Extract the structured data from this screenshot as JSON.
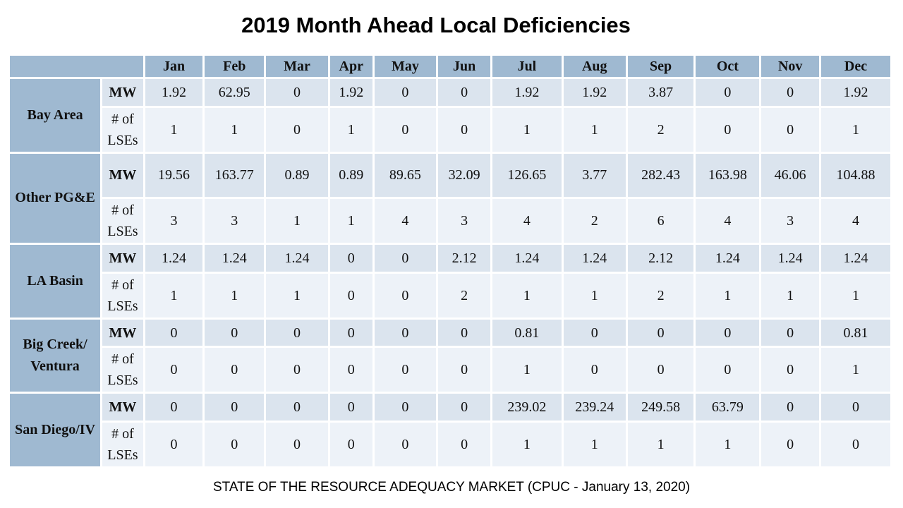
{
  "title": "2019 Month Ahead Local Deficiencies",
  "footer": "STATE OF THE RESOURCE ADEQUACY MARKET (CPUC - January 13, 2020)",
  "months": [
    "Jan",
    "Feb",
    "Mar",
    "Apr",
    "May",
    "Jun",
    "Jul",
    "Aug",
    "Sep",
    "Oct",
    "Nov",
    "Dec"
  ],
  "metric_labels": {
    "mw": "MW",
    "lses": "# of LSEs"
  },
  "regions": [
    {
      "name": "Bay Area",
      "mw": [
        "1.92",
        "62.95",
        "0",
        "1.92",
        "0",
        "0",
        "1.92",
        "1.92",
        "3.87",
        "0",
        "0",
        "1.92"
      ],
      "lses": [
        "1",
        "1",
        "0",
        "1",
        "0",
        "0",
        "1",
        "1",
        "2",
        "0",
        "0",
        "1"
      ]
    },
    {
      "name": "Other PG&E",
      "mw": [
        "19.56",
        "163.77",
        "0.89",
        "0.89",
        "89.65",
        "32.09",
        "126.65",
        "3.77",
        "282.43",
        "163.98",
        "46.06",
        "104.88"
      ],
      "lses": [
        "3",
        "3",
        "1",
        "1",
        "4",
        "3",
        "4",
        "2",
        "6",
        "4",
        "3",
        "4"
      ]
    },
    {
      "name": "LA Basin",
      "mw": [
        "1.24",
        "1.24",
        "1.24",
        "0",
        "0",
        "2.12",
        "1.24",
        "1.24",
        "2.12",
        "1.24",
        "1.24",
        "1.24"
      ],
      "lses": [
        "1",
        "1",
        "1",
        "0",
        "0",
        "2",
        "1",
        "1",
        "2",
        "1",
        "1",
        "1"
      ]
    },
    {
      "name": "Big Creek/ Ventura",
      "mw": [
        "0",
        "0",
        "0",
        "0",
        "0",
        "0",
        "0.81",
        "0",
        "0",
        "0",
        "0",
        "0.81"
      ],
      "lses": [
        "0",
        "0",
        "0",
        "0",
        "0",
        "0",
        "1",
        "0",
        "0",
        "0",
        "0",
        "1"
      ]
    },
    {
      "name": "San Diego/IV",
      "mw": [
        "0",
        "0",
        "0",
        "0",
        "0",
        "0",
        "239.02",
        "239.24",
        "249.58",
        "63.79",
        "0",
        "0"
      ],
      "lses": [
        "0",
        "0",
        "0",
        "0",
        "0",
        "0",
        "1",
        "1",
        "1",
        "1",
        "0",
        "0"
      ]
    }
  ]
}
